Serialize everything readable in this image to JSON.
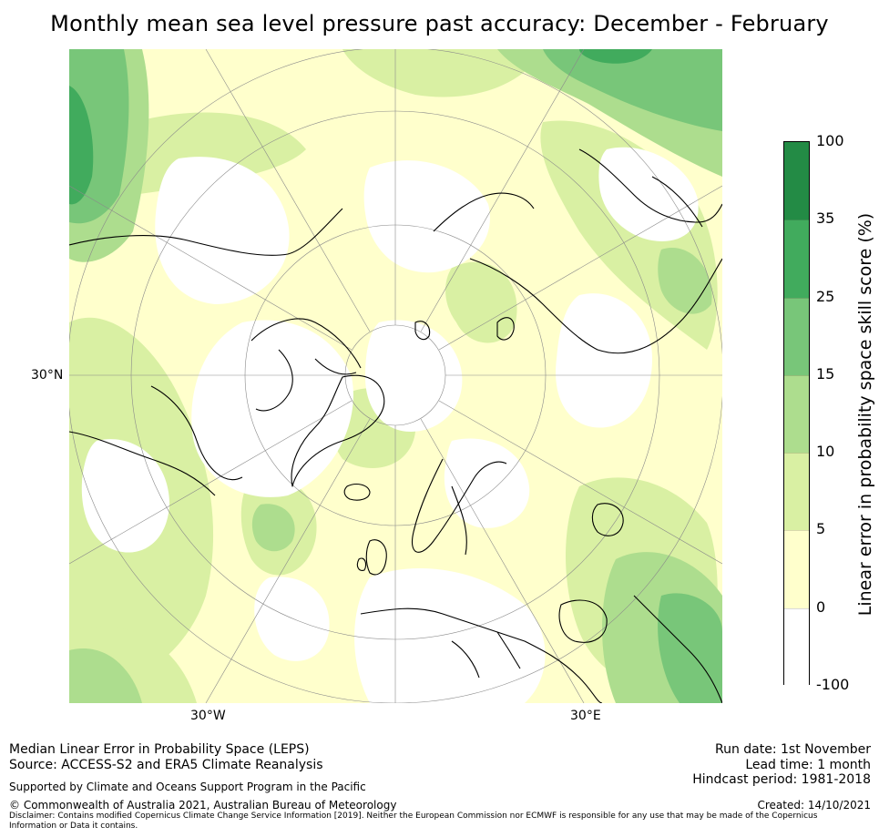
{
  "title": "Monthly mean sea level pressure past accuracy: December - February",
  "map": {
    "lat_label": "30°N",
    "lon_labels": [
      "30°W",
      "30°E"
    ],
    "projection": "north-polar-stereographic"
  },
  "colorbar": {
    "label": "Linear error in probability space skill score (%)",
    "ticks": [
      "100",
      "35",
      "25",
      "15",
      "10",
      "5",
      "0",
      "-100"
    ],
    "bins": [
      {
        "range": "35 to 100",
        "color": "#238b45"
      },
      {
        "range": "25 to 35",
        "color": "#41ab5d"
      },
      {
        "range": "15 to 25",
        "color": "#78c679"
      },
      {
        "range": "10 to 15",
        "color": "#addd8e"
      },
      {
        "range": "5 to 10",
        "color": "#d9f0a3"
      },
      {
        "range": "0 to 5",
        "color": "#ffffcc"
      },
      {
        "range": "-100 to 0",
        "color": "#ffffff"
      }
    ]
  },
  "footer": {
    "line1": "Median Linear Error in Probability Space (LEPS)",
    "line2": "Source: ACCESS-S2 and ERA5 Climate Reanalysis",
    "support": "Supported by Climate and Oceans Support Program in the Pacific",
    "copyright": "© Commonwealth of Australia 2021, Australian Bureau of Meteorology",
    "run_date": "Run date: 1st November",
    "lead_time": "Lead time: 1 month",
    "hindcast": "Hindcast period: 1981-2018",
    "created": "Created: 14/10/2021",
    "disclaimer": "Disclaimer: Contains modified Copernicus Climate Change Service Information [2019]. Neither the European Commission nor ECMWF is responsible for any use that may be made of the Copernicus Information or Data it contains."
  }
}
